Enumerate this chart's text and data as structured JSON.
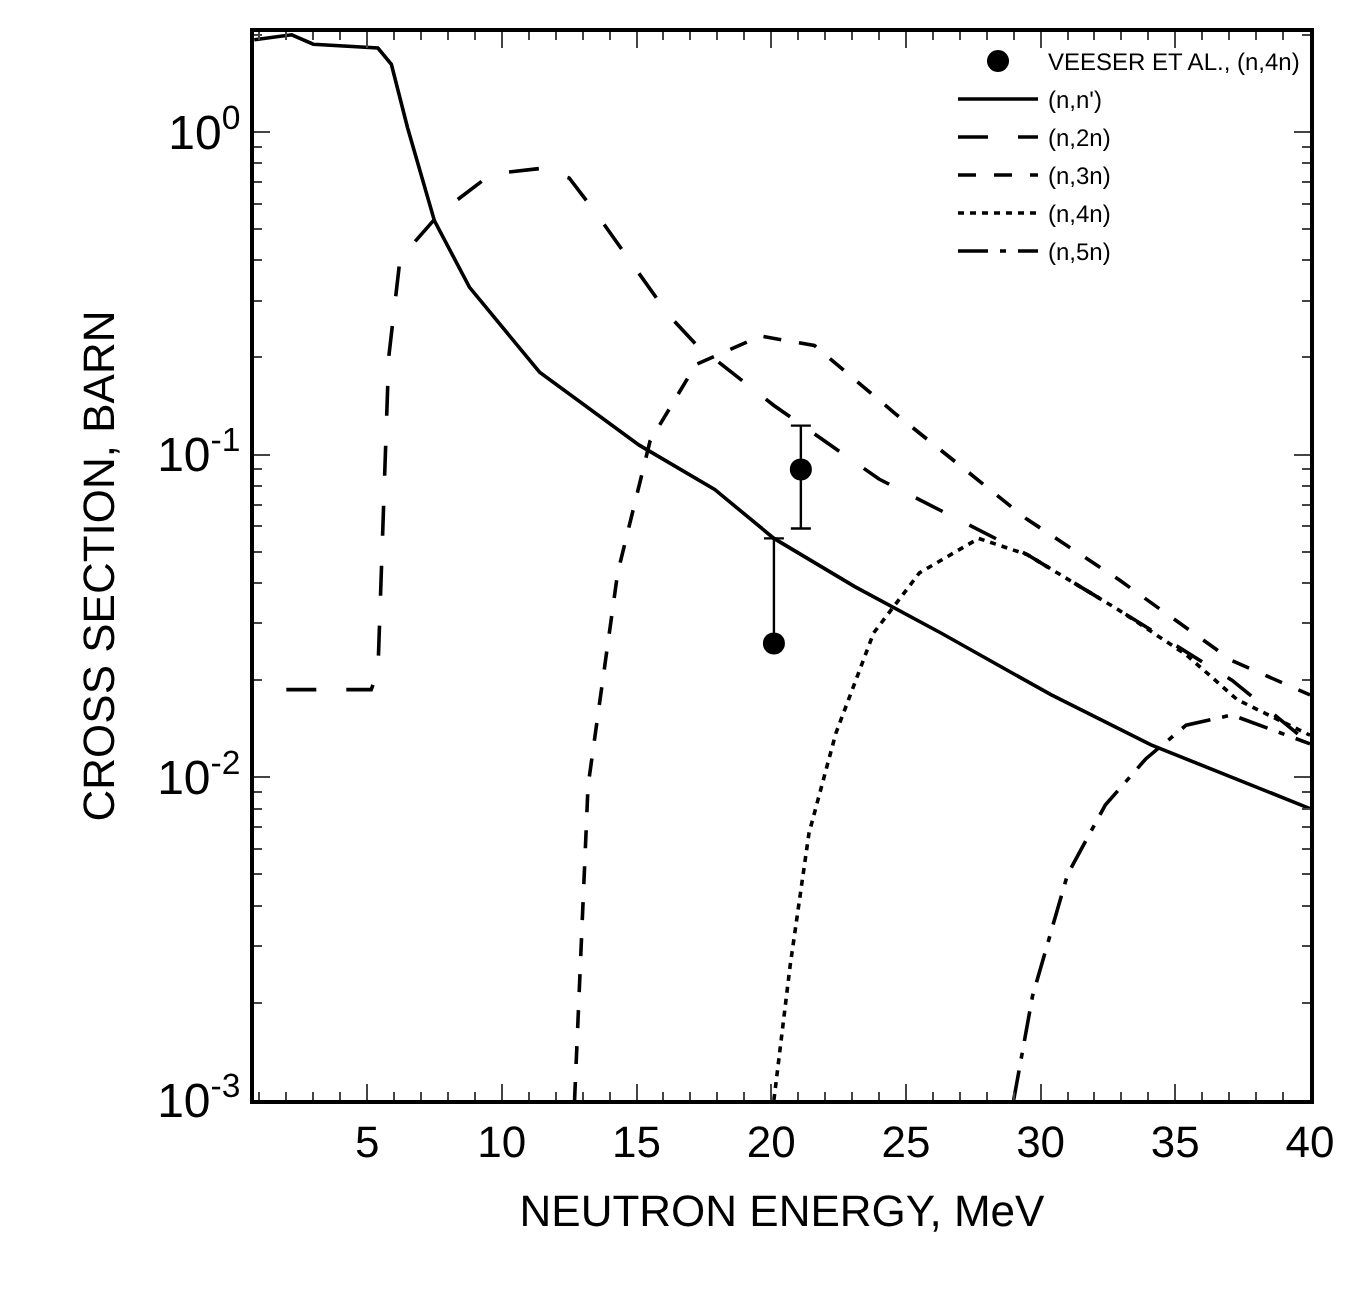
{
  "chart_data": {
    "type": "line",
    "xlabel": "NEUTRON ENERGY, MeV",
    "ylabel": "CROSS SECTION, BARN",
    "log": "y",
    "xlim": [
      0.8,
      40
    ],
    "ylim": [
      0.001,
      2.04
    ],
    "xticks": [
      5,
      10,
      15,
      20,
      25,
      30,
      35,
      40
    ],
    "yticks": [
      {
        "value": 1,
        "label": "10$^{0}$"
      },
      {
        "value": 0.1,
        "label": "10$^{-1}$"
      },
      {
        "value": 0.01,
        "label": "10$^{-2}$"
      },
      {
        "value": 0.001,
        "label": "10$^{-3}$"
      }
    ],
    "legend": "top right",
    "series": [
      {
        "name": "VEESER ET AL., (n,4n)",
        "type": "scatter",
        "marker": "circle",
        "color": "#000000",
        "x": [
          20.1,
          21.1
        ],
        "values": [
          0.026,
          0.09
        ],
        "errors": [
          [
            0.026,
            0.055
          ],
          [
            0.059,
            0.123
          ]
        ]
      },
      {
        "name": "(n,n')",
        "color": "#000000",
        "line_style": "solid",
        "x": [
          0.81,
          2.2,
          3.0,
          5.4,
          5.9,
          6.5,
          7.5,
          8.8,
          11.4,
          15.1,
          17.9,
          20.1,
          23.1,
          26.3,
          30.4,
          34.1,
          40
        ],
        "values": [
          1.93,
          2.0,
          1.87,
          1.82,
          1.62,
          1.03,
          0.53,
          0.33,
          0.18,
          0.107,
          0.078,
          0.055,
          0.039,
          0.028,
          0.018,
          0.0126,
          0.008
        ]
      },
      {
        "name": "(n,2n)",
        "color": "#000000",
        "line_style": "longdash",
        "x": [
          2.0,
          5.15,
          5.4,
          5.8,
          6.2,
          6.8,
          7.7,
          9.6,
          11.4,
          12.5,
          13.5,
          16.2,
          17.2,
          20.1,
          24.0,
          29.5,
          32.9,
          37.1,
          40
        ],
        "values": [
          0.0187,
          0.0187,
          0.0213,
          0.2,
          0.39,
          0.46,
          0.56,
          0.74,
          0.77,
          0.72,
          0.56,
          0.27,
          0.22,
          0.142,
          0.084,
          0.049,
          0.033,
          0.02,
          0.0127
        ]
      },
      {
        "name": "(n,3n)",
        "color": "#000000",
        "line_style": "dashed",
        "x": [
          12.7,
          13.2,
          14.3,
          15.5,
          17.2,
          19.6,
          21.6,
          24.6,
          29.5,
          32.9,
          37.1,
          40
        ],
        "values": [
          0.001,
          0.0094,
          0.043,
          0.11,
          0.19,
          0.233,
          0.218,
          0.134,
          0.063,
          0.041,
          0.023,
          0.018
        ]
      },
      {
        "name": "(n,4n)",
        "color": "#000000",
        "line_style": "dotted",
        "x": [
          20.1,
          20.7,
          21.4,
          22.4,
          23.8,
          25.5,
          27.7,
          29.5,
          32.9,
          35.4,
          37.3,
          40
        ],
        "values": [
          0.001,
          0.0026,
          0.0067,
          0.0137,
          0.028,
          0.043,
          0.055,
          0.049,
          0.033,
          0.024,
          0.0174,
          0.0135
        ]
      },
      {
        "name": "(n,5n)",
        "color": "#000000",
        "line_style": "longdashdot",
        "x": [
          29.0,
          29.7,
          31.0,
          32.4,
          33.9,
          35.4,
          37.1,
          40
        ],
        "values": [
          0.001,
          0.0021,
          0.005,
          0.0082,
          0.0114,
          0.0145,
          0.0156,
          0.0127
        ]
      }
    ]
  }
}
